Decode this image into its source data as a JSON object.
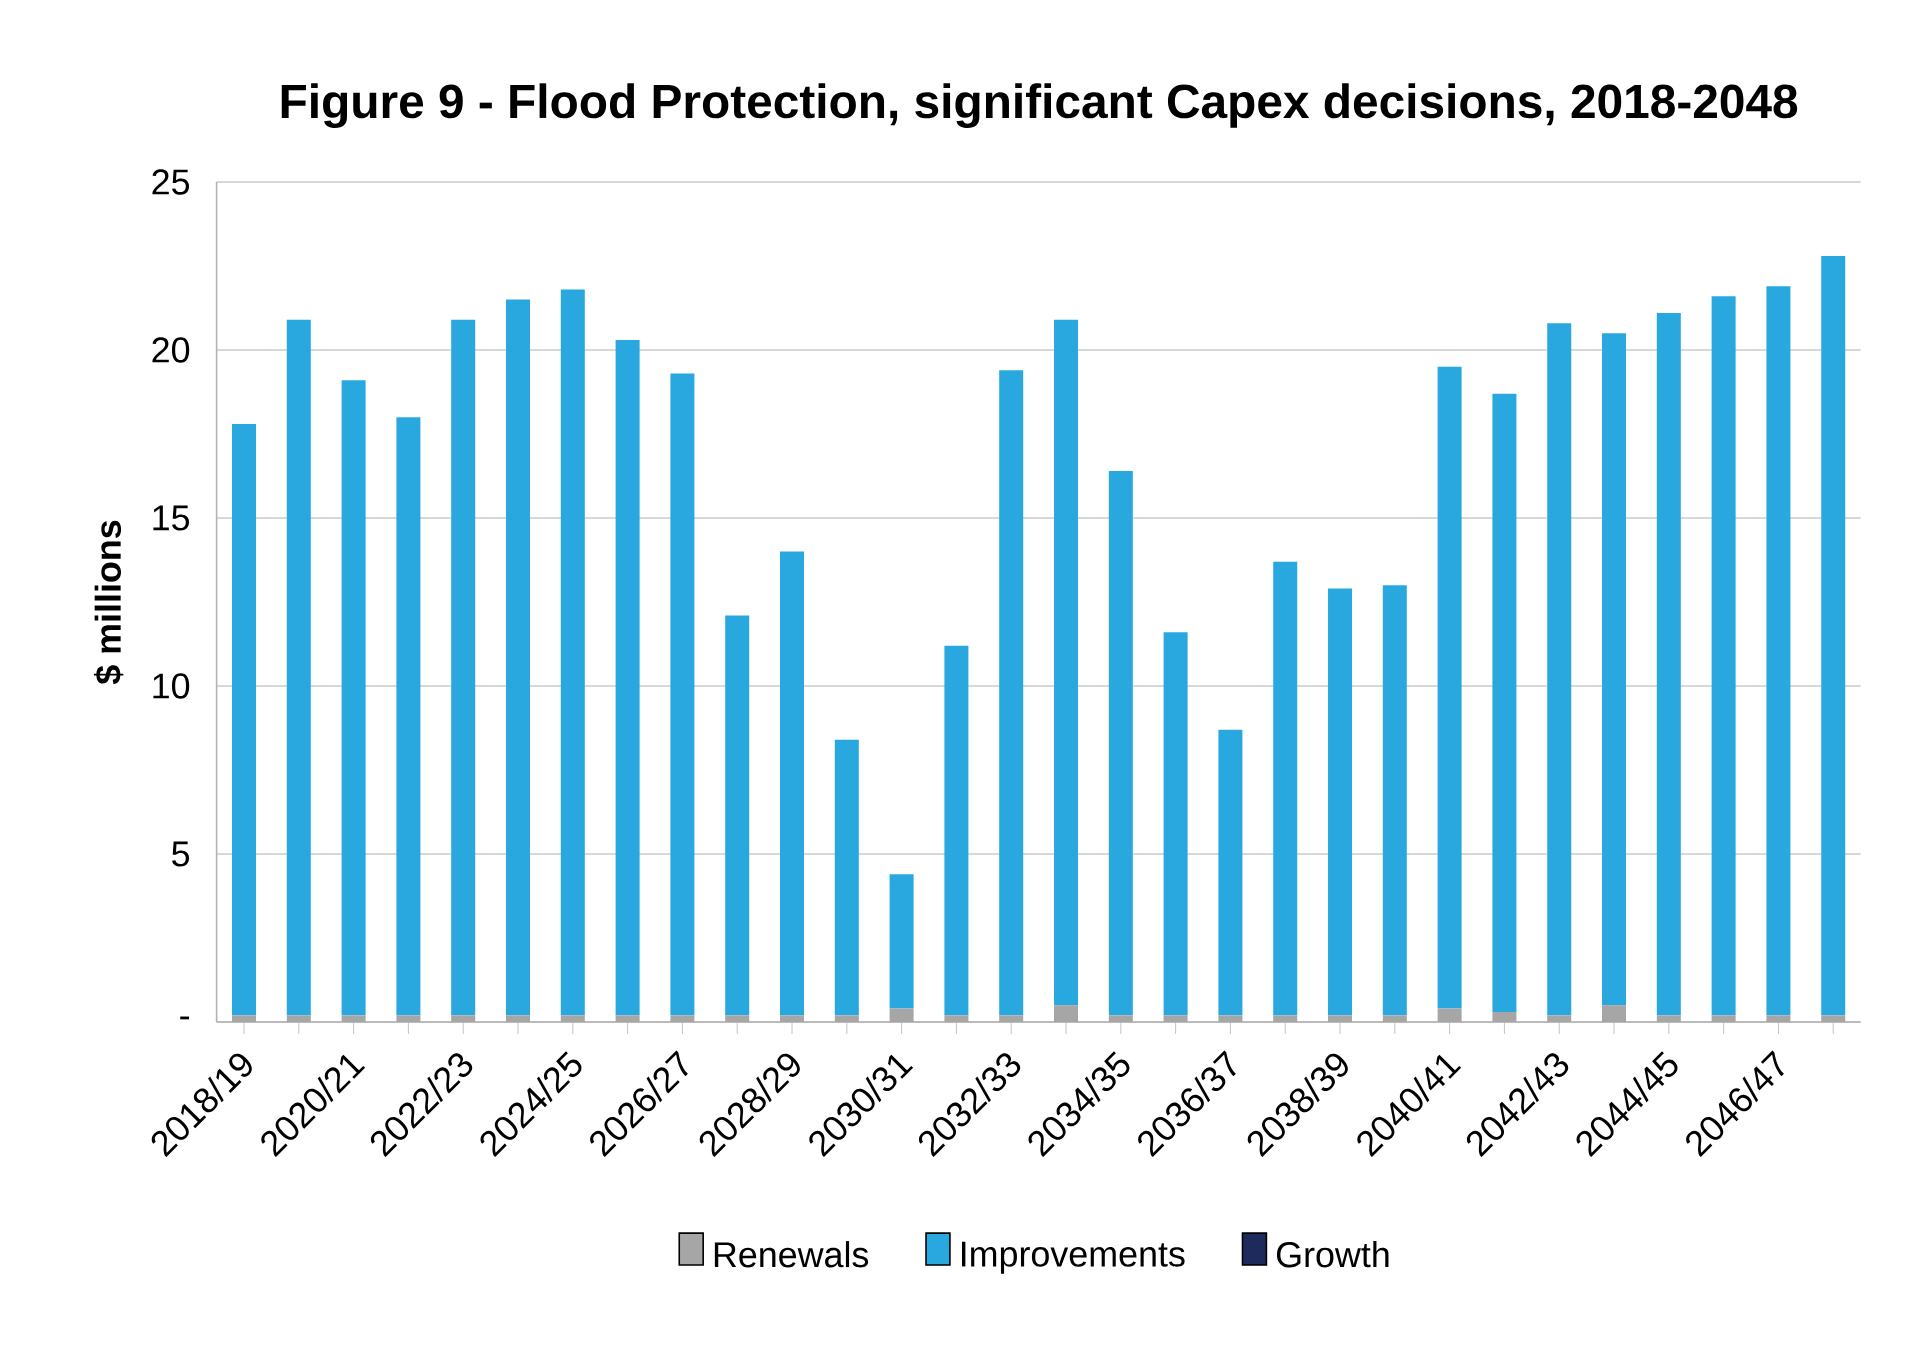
{
  "chart_data": {
    "type": "bar",
    "title": "Figure 9 - Flood Protection, significant Capex decisions, 2018-2048",
    "ylabel": "$ millions",
    "categories": [
      "2018/19",
      null,
      "2020/21",
      null,
      "2022/23",
      null,
      "2024/25",
      null,
      "2026/27",
      null,
      "2028/29",
      null,
      "2030/31",
      null,
      "2032/33",
      null,
      "2034/35",
      null,
      "2036/37",
      null,
      "2038/39",
      null,
      "2040/41",
      null,
      "2042/43",
      null,
      "2044/45",
      null,
      "2046/47",
      null
    ],
    "series": [
      {
        "name": "Renewals",
        "color": "#a6a6a6",
        "values": [
          0.2,
          0.2,
          0.2,
          0.2,
          0.2,
          0.2,
          0.2,
          0.2,
          0.2,
          0.2,
          0.2,
          0.2,
          0.4,
          0.2,
          0.2,
          0.5,
          0.2,
          0.2,
          0.2,
          0.2,
          0.2,
          0.2,
          0.4,
          0.3,
          0.2,
          0.5,
          0.2,
          0.2,
          0.2,
          0.2
        ]
      },
      {
        "name": "Improvements",
        "color": "#29a8e0",
        "values": [
          17.6,
          20.7,
          18.9,
          17.8,
          20.7,
          21.3,
          21.6,
          20.1,
          19.1,
          11.9,
          13.8,
          8.2,
          4.0,
          11.0,
          19.2,
          20.4,
          16.2,
          11.4,
          8.5,
          13.5,
          12.7,
          12.8,
          19.1,
          18.4,
          20.6,
          20.0,
          20.9,
          21.4,
          21.7,
          22.6
        ]
      },
      {
        "name": "Growth",
        "color": "#1f2a5c",
        "values": [
          0,
          0,
          0,
          0,
          0,
          0,
          0,
          0,
          0,
          0,
          0,
          0,
          0,
          0,
          0,
          0,
          0,
          0,
          0,
          0,
          0,
          0,
          0,
          0,
          0,
          0,
          0,
          0,
          0,
          0
        ]
      }
    ],
    "stacked": true,
    "ylim": [
      0,
      25
    ],
    "yticks": [
      {
        "value": 0,
        "label": "-"
      },
      5,
      10,
      15,
      20,
      25
    ],
    "grid": "y",
    "legend": "bottom"
  }
}
